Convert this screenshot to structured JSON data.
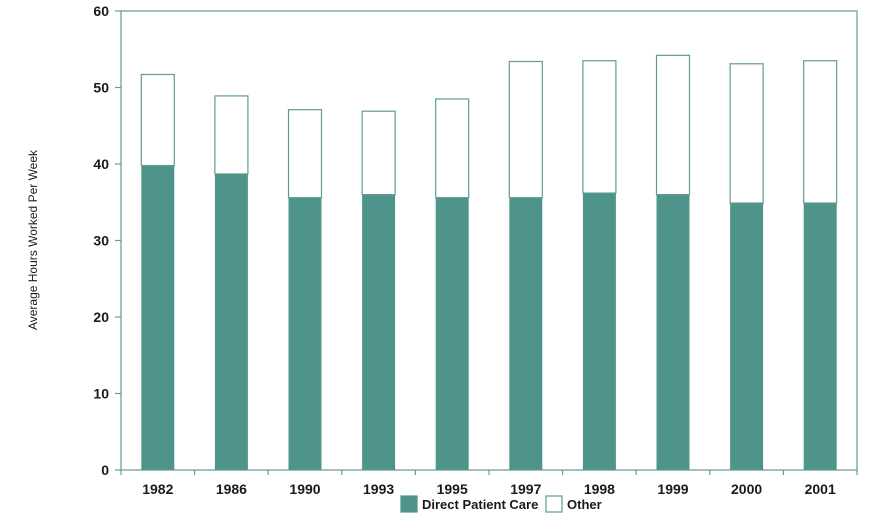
{
  "chart_data": {
    "type": "bar",
    "stacked": true,
    "title": "",
    "xlabel": "",
    "ylabel": "Average Hours Worked Per Week",
    "ylim": [
      0,
      60
    ],
    "yticks": [
      "0",
      "10",
      "20",
      "30",
      "40",
      "50",
      "60"
    ],
    "categories": [
      "1982",
      "1986",
      "1990",
      "1993",
      "1995",
      "1997",
      "1998",
      "1999",
      "2000",
      "2001"
    ],
    "series": [
      {
        "name": "Direct Patient Care",
        "color": "#4f948a",
        "values": [
          39.8,
          38.7,
          35.6,
          36.0,
          35.6,
          35.6,
          36.2,
          36.0,
          34.9,
          34.9
        ]
      },
      {
        "name": "Other",
        "color": "#ffffff",
        "values": [
          11.9,
          10.2,
          11.5,
          10.9,
          12.9,
          17.8,
          17.3,
          18.2,
          18.2,
          18.6
        ]
      }
    ],
    "grid": false,
    "legend_position": "bottom-center"
  }
}
